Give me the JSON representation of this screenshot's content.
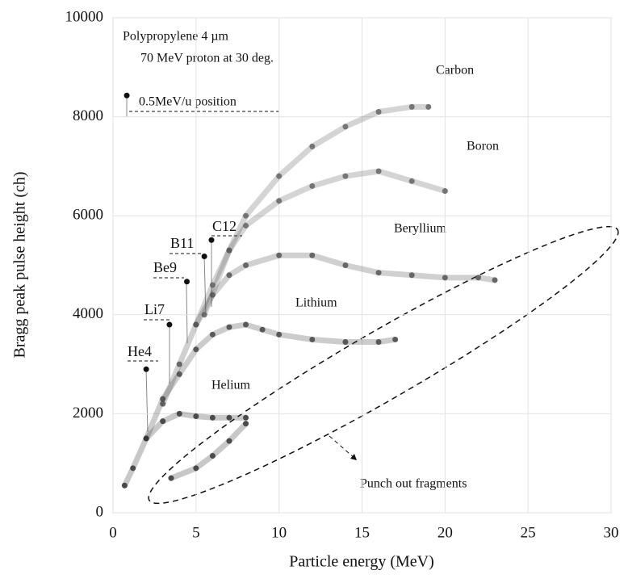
{
  "chart_data": {
    "type": "scatter",
    "title": null,
    "subtitle": [
      "Polypropylene 4 µm",
      "70 MeV proton at 30 deg."
    ],
    "xlabel": "Particle energy (MeV)",
    "ylabel": "Bragg peak pulse height (ch)",
    "xlim": [
      0,
      30
    ],
    "xticks": [
      0,
      5,
      10,
      15,
      20,
      25,
      30
    ],
    "ylim": [
      0,
      10000
    ],
    "yticks": [
      0,
      2000,
      4000,
      6000,
      8000,
      10000
    ],
    "grid": true,
    "series": [
      {
        "name": "Helium",
        "color": "#222",
        "x": [
          0.7,
          1.2,
          2,
          3,
          4,
          5,
          6,
          7,
          8
        ],
        "values": [
          550,
          900,
          1500,
          1850,
          2000,
          1950,
          1920,
          1920,
          1920
        ]
      },
      {
        "name": "Lithium",
        "color": "#333",
        "x": [
          2,
          3,
          4,
          5,
          6,
          7,
          8,
          9,
          10,
          12,
          14,
          16,
          17
        ],
        "values": [
          1500,
          2300,
          2800,
          3300,
          3600,
          3750,
          3800,
          3700,
          3600,
          3500,
          3450,
          3450,
          3500
        ]
      },
      {
        "name": "Beryllium",
        "color": "#444",
        "x": [
          3,
          4,
          5,
          6,
          7,
          8,
          10,
          12,
          14,
          16,
          18,
          20,
          22,
          23
        ],
        "values": [
          2200,
          3000,
          3800,
          4400,
          4800,
          5000,
          5200,
          5200,
          5000,
          4850,
          4800,
          4750,
          4750,
          4700
        ]
      },
      {
        "name": "Boron",
        "color": "#555",
        "x": [
          5,
          6,
          7,
          8,
          10,
          12,
          14,
          16,
          18,
          20
        ],
        "values": [
          3800,
          4600,
          5300,
          5800,
          6300,
          6600,
          6800,
          6900,
          6700,
          6500
        ]
      },
      {
        "name": "Carbon",
        "color": "#555",
        "x": [
          5.5,
          7,
          8,
          10,
          12,
          14,
          16,
          18,
          19
        ],
        "values": [
          4000,
          5300,
          6000,
          6800,
          7400,
          7800,
          8100,
          8200,
          8200
        ]
      },
      {
        "name": "Punch out fragments",
        "color": "#222",
        "x": [
          3.5,
          5,
          6,
          7,
          8
        ],
        "values": [
          700,
          900,
          1150,
          1450,
          1800
        ]
      }
    ],
    "markers": [
      {
        "label": "0.5MeV/u position",
        "x": 0.83,
        "y": 8430
      },
      {
        "label": "He4",
        "x": 2.0,
        "y": 2900
      },
      {
        "label": "Li7",
        "x": 3.4,
        "y": 3800
      },
      {
        "label": "Be9",
        "x": 4.45,
        "y": 4670
      },
      {
        "label": "B11",
        "x": 5.5,
        "y": 5180
      },
      {
        "label": "C12",
        "x": 5.93,
        "y": 5510
      }
    ]
  }
}
